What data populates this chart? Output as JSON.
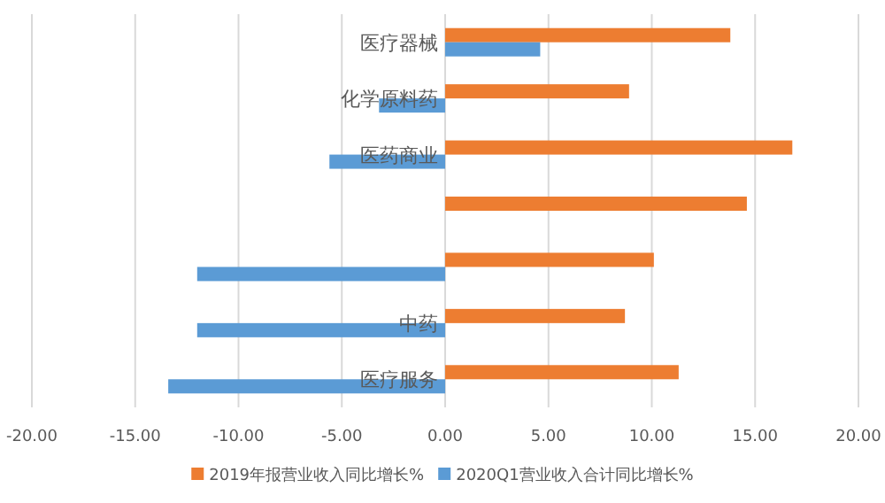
{
  "chart_data": {
    "type": "bar",
    "orientation": "horizontal",
    "categories": [
      "医疗器械",
      "化学原料药",
      "医药商业",
      null,
      null,
      "中药",
      "医疗服务"
    ],
    "series": [
      {
        "name": "2019年报营业收入同比增长%",
        "color": "#ed7d31",
        "values": [
          13.8,
          8.9,
          16.8,
          14.6,
          10.1,
          8.7,
          11.3
        ]
      },
      {
        "name": "2020Q1营业收入合计同比增长%",
        "color": "#5b9bd5",
        "values": [
          4.6,
          -3.2,
          -5.6,
          null,
          -12.0,
          -12.0,
          -13.4
        ]
      }
    ],
    "xlim": [
      -20,
      20
    ],
    "xticks": [
      {
        "value": -20,
        "label": "-20.00"
      },
      {
        "value": -15,
        "label": "-15.00"
      },
      {
        "value": -10,
        "label": "-10.00"
      },
      {
        "value": -5,
        "label": "-5.00"
      },
      {
        "value": 0,
        "label": "0.00"
      },
      {
        "value": 5,
        "label": "5.00"
      },
      {
        "value": 10,
        "label": "10.00"
      },
      {
        "value": 15,
        "label": "15.00"
      },
      {
        "value": 20,
        "label": "20.00"
      }
    ],
    "grid": "x",
    "legend": "bottom"
  }
}
